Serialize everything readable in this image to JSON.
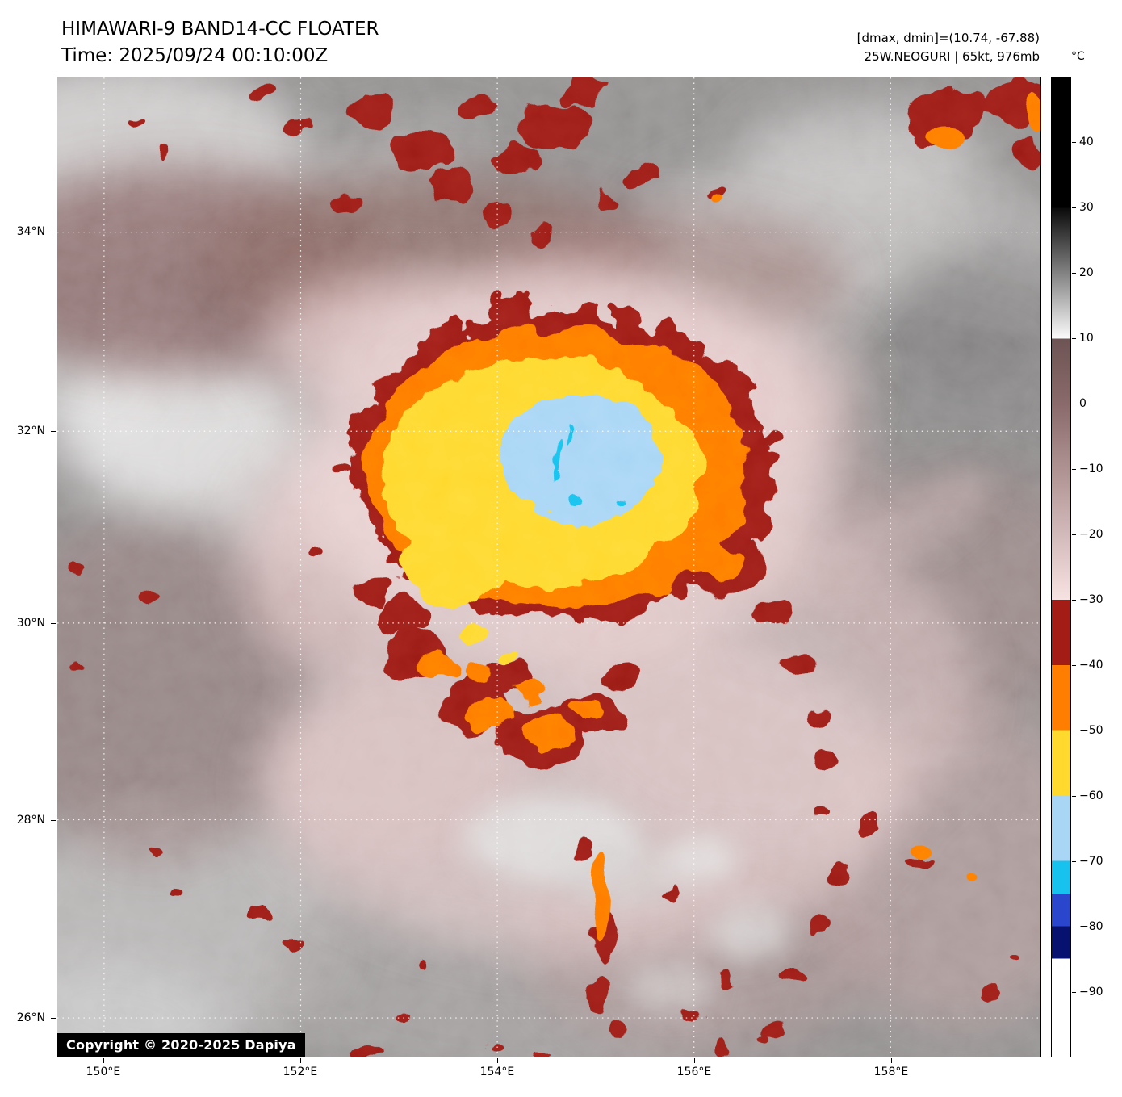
{
  "header": {
    "title": "HIMAWARI-9 BAND14-CC FLOATER",
    "time": "Time: 2025/09/24 00:10:00Z",
    "range_readout": "[dmax, dmin]=(10.74, -67.88)",
    "storm_readout": "25W.NEOGURI | 65kt, 976mb"
  },
  "axes": {
    "x_ticks": [
      {
        "label": "150°E",
        "pos": 0.0475
      },
      {
        "label": "152°E",
        "pos": 0.2475
      },
      {
        "label": "154°E",
        "pos": 0.4475
      },
      {
        "label": "156°E",
        "pos": 0.6475
      },
      {
        "label": "158°E",
        "pos": 0.8475
      }
    ],
    "y_ticks": [
      {
        "label": "34°N",
        "pos": 0.158
      },
      {
        "label": "32°N",
        "pos": 0.361
      },
      {
        "label": "30°N",
        "pos": 0.557
      },
      {
        "label": "28°N",
        "pos": 0.758
      },
      {
        "label": "26°N",
        "pos": 0.96
      }
    ]
  },
  "colorbar": {
    "unit": "°C",
    "ticks": [
      {
        "label": "40",
        "pos": 0.0667
      },
      {
        "label": "30",
        "pos": 0.1333
      },
      {
        "label": "20",
        "pos": 0.2
      },
      {
        "label": "10",
        "pos": 0.2667
      },
      {
        "label": "0",
        "pos": 0.3333
      },
      {
        "label": "−10",
        "pos": 0.4
      },
      {
        "label": "−20",
        "pos": 0.4667
      },
      {
        "label": "−30",
        "pos": 0.5333
      },
      {
        "label": "−40",
        "pos": 0.6
      },
      {
        "label": "−50",
        "pos": 0.6667
      },
      {
        "label": "−60",
        "pos": 0.7333
      },
      {
        "label": "−70",
        "pos": 0.8
      },
      {
        "label": "−80",
        "pos": 0.8667
      },
      {
        "label": "−90",
        "pos": 0.9333
      }
    ],
    "segments": [
      {
        "from": 0,
        "to": 13.33,
        "color": "#000000"
      },
      {
        "from": 13.33,
        "to": 26.67,
        "color": "#0a0a0a",
        "color2": "#fbfbfb"
      },
      {
        "from": 26.67,
        "to": 33.33,
        "color": "#6d5454",
        "color2": "#8a6a6a"
      },
      {
        "from": 33.33,
        "to": 53.33,
        "color": "#8a6a6a",
        "color2": "#f7e2e2"
      },
      {
        "from": 53.33,
        "to": 60,
        "color": "#a31c16"
      },
      {
        "from": 60,
        "to": 66.67,
        "color": "#ff7d00"
      },
      {
        "from": 66.67,
        "to": 73.33,
        "color": "#ffd92e"
      },
      {
        "from": 73.33,
        "to": 80,
        "color": "#a9d6f5"
      },
      {
        "from": 80,
        "to": 83.33,
        "color": "#18c2ee"
      },
      {
        "from": 83.33,
        "to": 86.67,
        "color": "#2a46cc"
      },
      {
        "from": 86.67,
        "to": 90,
        "color": "#071270"
      },
      {
        "from": 90,
        "to": 100,
        "color": "#ffffff"
      }
    ]
  },
  "footer": {
    "copyright": "Copyright © 2020-2025 Dapiya"
  }
}
